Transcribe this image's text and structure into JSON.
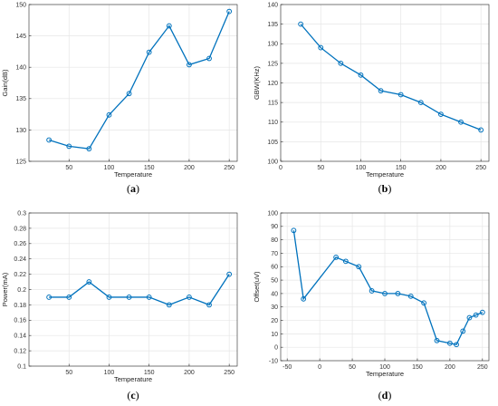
{
  "colors": {
    "line": "#0072BD",
    "grid": "#e6e6e6",
    "axis": "#262626"
  },
  "chart_data": [
    {
      "type": "line",
      "panel_label": "a",
      "xlabel": "Temperature",
      "ylabel": "Gain(dB)",
      "xlim": [
        0,
        260
      ],
      "ylim": [
        125,
        150
      ],
      "xticks": [
        50,
        100,
        150,
        200,
        250
      ],
      "yticks": [
        125,
        130,
        135,
        140,
        145,
        150
      ],
      "grid": true,
      "x": [
        25,
        50,
        75,
        100,
        125,
        150,
        175,
        200,
        225,
        250
      ],
      "y": [
        128.4,
        127.4,
        127.0,
        132.4,
        135.8,
        142.4,
        146.6,
        140.4,
        141.4,
        148.9
      ]
    },
    {
      "type": "line",
      "panel_label": "b",
      "xlabel": "Temperature",
      "ylabel": "GBW(KHz)",
      "xlim": [
        0,
        260
      ],
      "ylim": [
        100,
        140
      ],
      "xticks": [
        0,
        50,
        100,
        150,
        200,
        250
      ],
      "yticks": [
        100,
        105,
        110,
        115,
        120,
        125,
        130,
        135,
        140
      ],
      "grid": true,
      "x": [
        25,
        50,
        75,
        100,
        125,
        150,
        175,
        200,
        225,
        250
      ],
      "y": [
        135,
        129,
        125,
        122,
        118,
        117,
        115,
        112,
        110,
        108
      ]
    },
    {
      "type": "line",
      "panel_label": "c",
      "xlabel": "Temperature",
      "ylabel": "Power(mA)",
      "xlim": [
        0,
        260
      ],
      "ylim": [
        0.1,
        0.3
      ],
      "xticks": [
        50,
        100,
        150,
        200,
        250
      ],
      "yticks": [
        0.1,
        0.12,
        0.14,
        0.16,
        0.18,
        0.2,
        0.22,
        0.24,
        0.26,
        0.28,
        0.3
      ],
      "ytick_labels": [
        "0.1",
        "0.12",
        "0.14",
        "0.16",
        "0.18",
        "0.2",
        "0.22",
        "0.24",
        "0.26",
        "0.28",
        "0.3"
      ],
      "grid": true,
      "x": [
        25,
        50,
        75,
        100,
        125,
        150,
        175,
        200,
        225,
        250
      ],
      "y": [
        0.19,
        0.19,
        0.21,
        0.19,
        0.19,
        0.19,
        0.18,
        0.19,
        0.18,
        0.22
      ]
    },
    {
      "type": "line",
      "panel_label": "d",
      "xlabel": "Temperature",
      "ylabel": "Offset(uV)",
      "xlim": [
        -60,
        260
      ],
      "ylim": [
        -10,
        100
      ],
      "xticks": [
        -50,
        0,
        50,
        100,
        150,
        200,
        250
      ],
      "yticks": [
        -10,
        0,
        10,
        20,
        30,
        40,
        50,
        60,
        70,
        80,
        90,
        100
      ],
      "grid": true,
      "x": [
        -40,
        -25,
        25,
        40,
        60,
        80,
        100,
        120,
        140,
        160,
        180,
        200,
        210,
        220,
        230,
        240,
        250
      ],
      "y": [
        87,
        36,
        67,
        64,
        60,
        42,
        40,
        40,
        38,
        33,
        5,
        3,
        2,
        12,
        22,
        24,
        26
      ]
    }
  ]
}
